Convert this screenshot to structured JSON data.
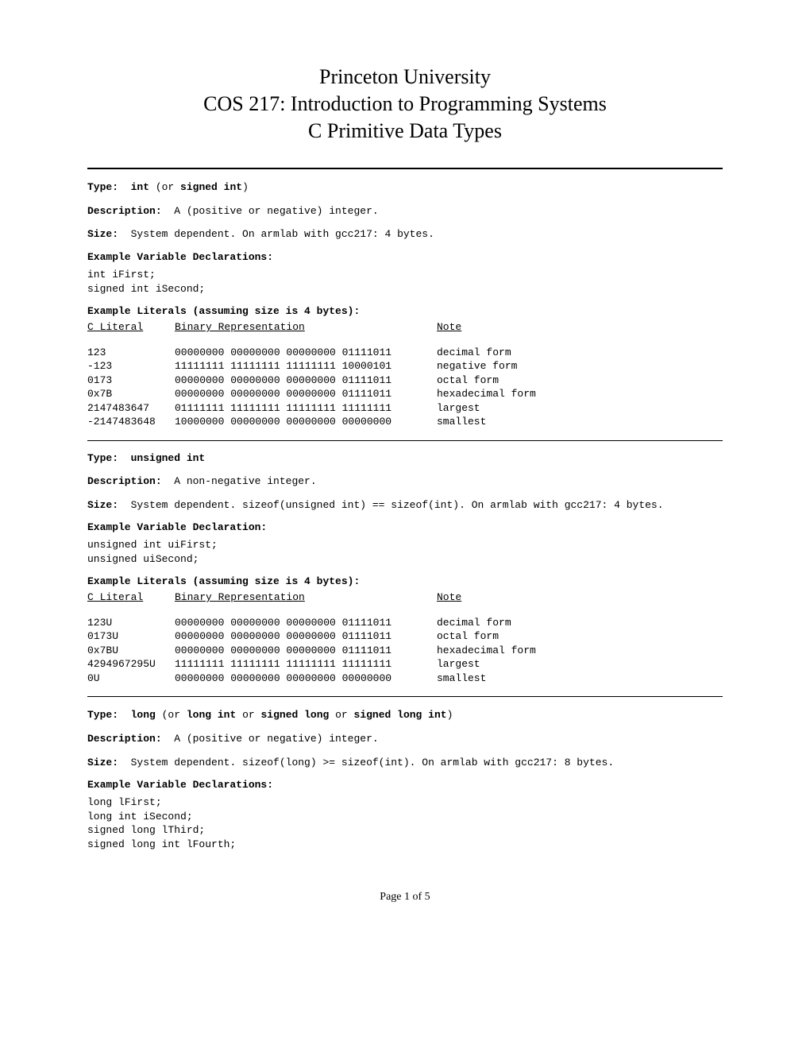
{
  "title": {
    "line1": "Princeton University",
    "line2": "COS 217: Introduction to Programming Systems",
    "line3": "C Primitive Data Types"
  },
  "sections": [
    {
      "type_label": "Type:",
      "type_name": "int",
      "type_alt_prefix": " (or ",
      "type_alts": "signed int",
      "type_alt_suffix": ")",
      "description_label": "Description:",
      "description": "A (positive or negative) integer.",
      "size_label": "Size:",
      "size": "System dependent. On armlab with gcc217: 4 bytes.",
      "decl_label": "Example Variable Declarations:",
      "declarations": "int iFirst;\nsigned int iSecond;",
      "lit_label": "Example Literals (assuming size is 4 bytes):",
      "headers": {
        "literal": "C Literal",
        "binary": "Binary Representation",
        "note": "Note"
      },
      "rows": [
        {
          "literal": "123",
          "binary": "00000000 00000000 00000000 01111011",
          "note": "decimal form"
        },
        {
          "literal": "-123",
          "binary": "11111111 11111111 11111111 10000101",
          "note": "negative form"
        },
        {
          "literal": "0173",
          "binary": "00000000 00000000 00000000 01111011",
          "note": "octal form"
        },
        {
          "literal": "0x7B",
          "binary": "00000000 00000000 00000000 01111011",
          "note": "hexadecimal form"
        },
        {
          "literal": "2147483647",
          "binary": "01111111 11111111 11111111 11111111",
          "note": "largest"
        },
        {
          "literal": "-2147483648",
          "binary": "10000000 00000000 00000000 00000000",
          "note": "smallest"
        }
      ]
    },
    {
      "type_label": "Type:",
      "type_name": "unsigned int",
      "type_alt_prefix": "",
      "type_alts": "",
      "type_alt_suffix": "",
      "description_label": "Description:",
      "description": "A non-negative integer.",
      "size_label": "Size:",
      "size": "System dependent. sizeof(unsigned int) == sizeof(int). On armlab with gcc217: 4 bytes.",
      "decl_label": "Example Variable Declaration:",
      "declarations": "unsigned int uiFirst;\nunsigned uiSecond;",
      "lit_label": "Example Literals (assuming size is 4 bytes):",
      "headers": {
        "literal": "C Literal",
        "binary": "Binary Representation",
        "note": "Note"
      },
      "rows": [
        {
          "literal": "123U",
          "binary": "00000000 00000000 00000000 01111011",
          "note": "decimal form"
        },
        {
          "literal": "0173U",
          "binary": "00000000 00000000 00000000 01111011",
          "note": "octal form"
        },
        {
          "literal": "0x7BU",
          "binary": "00000000 00000000 00000000 01111011",
          "note": "hexadecimal form"
        },
        {
          "literal": "4294967295U",
          "binary": "11111111 11111111 11111111 11111111",
          "note": "largest"
        },
        {
          "literal": "0U",
          "binary": "00000000 00000000 00000000 00000000",
          "note": "smallest"
        }
      ]
    },
    {
      "type_label": "Type:",
      "type_name": "long",
      "type_alt_prefix": " (or ",
      "type_alts_parts": [
        "long int",
        "signed long",
        "signed long int"
      ],
      "type_alt_joiner": " or ",
      "type_alt_suffix": ")",
      "description_label": "Description:",
      "description": "A (positive or negative) integer.",
      "size_label": "Size:",
      "size": "System dependent. sizeof(long) >= sizeof(int). On armlab with gcc217: 8 bytes.",
      "decl_label": "Example Variable Declarations:",
      "declarations": "long lFirst;\nlong int iSecond;\nsigned long lThird;\nsigned long int lFourth;",
      "lit_label": "",
      "headers": null,
      "rows": []
    }
  ],
  "page_footer": "Page 1 of 5"
}
